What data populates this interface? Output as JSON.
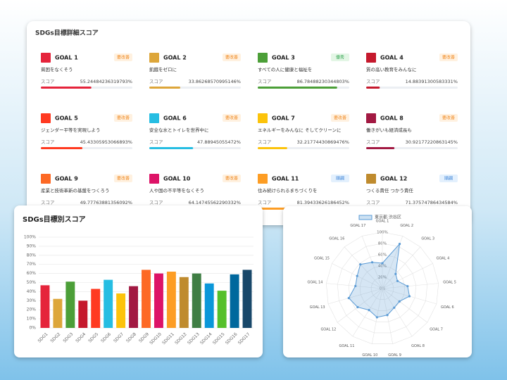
{
  "detail_panel": {
    "title": "SDGs目標詳細スコア",
    "score_caption": "スコア",
    "score_lim": [
      0,
      100
    ],
    "cards": [
      {
        "goal": "GOAL 1",
        "badge": "要改善",
        "description": "貧困をなくそう",
        "score": 55.24484236319793,
        "score_label": "55.24484236319793%",
        "color": "#e5243b"
      },
      {
        "goal": "GOAL 2",
        "badge": "要改善",
        "description": "飢餓をゼロに",
        "score": 33.86268570995146,
        "score_label": "33.86268570995146%",
        "color": "#dda63a"
      },
      {
        "goal": "GOAL 3",
        "badge": "優秀",
        "description": "すべての人に健康と福祉を",
        "score": 86.78488230344803,
        "score_label": "86.78488230344803%",
        "color": "#4c9f38"
      },
      {
        "goal": "GOAL 4",
        "badge": "要改善",
        "description": "質の高い教育をみんなに",
        "score": 14.88391300583331,
        "score_label": "14.88391300583331%",
        "color": "#c5192d"
      },
      {
        "goal": "GOAL 5",
        "badge": "要改善",
        "description": "ジェンダー平等を実現しよう",
        "score": 45.43305953066893,
        "score_label": "45.43305953066893%",
        "color": "#ff3a21"
      },
      {
        "goal": "GOAL 6",
        "badge": "要改善",
        "description": "安全な水とトイレを世界中に",
        "score": 47.88945055472,
        "score_label": "47.88945055472%",
        "color": "#26bde2"
      },
      {
        "goal": "GOAL 7",
        "badge": "要改善",
        "description": "エネルギーをみんなに そしてクリーンに",
        "score": 32.21774430869476,
        "score_label": "32.21774430869476%",
        "color": "#fcc30b"
      },
      {
        "goal": "GOAL 8",
        "badge": "要改善",
        "description": "働きがいも経済成長も",
        "score": 30.92177220863145,
        "score_label": "30.92177220863145%",
        "color": "#a21942"
      },
      {
        "goal": "GOAL 9",
        "badge": "要改善",
        "description": "産業と技術革新の基盤をつくろう",
        "score": 49.77763881356092,
        "score_label": "49.77763881356092%",
        "color": "#fd6925"
      },
      {
        "goal": "GOAL 10",
        "badge": "要改善",
        "description": "人や国の不平等をなくそう",
        "score": 64.14745562290332,
        "score_label": "64.14745562290332%",
        "color": "#dd1367"
      },
      {
        "goal": "GOAL 11",
        "badge": "順調",
        "description": "住み続けられるまちづくりを",
        "score": 81.39433626186452,
        "score_label": "81.39433626186452%",
        "color": "#fd9d24"
      },
      {
        "goal": "GOAL 12",
        "badge": "順調",
        "description": "つくる責任 つかう責任",
        "score": 71.37574786434584,
        "score_label": "71.37574786434584%",
        "color": "#bf8b2e"
      }
    ]
  },
  "chart_data": [
    {
      "type": "bar",
      "title": "SDGs目標別スコア",
      "categories": [
        "SDG1",
        "SDG2",
        "SDG3",
        "SDG4",
        "SDG5",
        "SDG6",
        "SDG7",
        "SDG8",
        "SDG9",
        "SDG10",
        "SDG11",
        "SDG12",
        "SDG13",
        "SDG14",
        "SDG15",
        "SDG16",
        "SDG17"
      ],
      "values": [
        47,
        32,
        51,
        30,
        43,
        53,
        38,
        46,
        64,
        60,
        62,
        56,
        60,
        49,
        41,
        59,
        64
      ],
      "colors": [
        "#e5243b",
        "#dda63a",
        "#4c9f38",
        "#c5192d",
        "#ff3a21",
        "#26bde2",
        "#fcc30b",
        "#a21942",
        "#fd6925",
        "#dd1367",
        "#fd9d24",
        "#bf8b2e",
        "#3f7e44",
        "#0a97d9",
        "#56c02b",
        "#00689d",
        "#19486a"
      ],
      "ylim": [
        0,
        100
      ],
      "yticks": [
        {
          "value": 0,
          "label": "0%"
        },
        {
          "value": 10,
          "label": "10%"
        },
        {
          "value": 20,
          "label": "20%"
        },
        {
          "value": 30,
          "label": "30%"
        },
        {
          "value": 40,
          "label": "40%"
        },
        {
          "value": 50,
          "label": "50%"
        },
        {
          "value": 60,
          "label": "60%"
        },
        {
          "value": 70,
          "label": "70%"
        },
        {
          "value": 80,
          "label": "80%"
        },
        {
          "value": 90,
          "label": "90%"
        },
        {
          "value": 100,
          "label": "100%"
        }
      ],
      "grid": true
    },
    {
      "type": "radar",
      "categories": [
        "GOAL 1",
        "GOAL 2",
        "GOAL 3",
        "GOAL 4",
        "GOAL 5",
        "GOAL 6",
        "GOAL 7",
        "GOAL 8",
        "GOAL 9",
        "GOAL 10",
        "GOAL 11",
        "GOAL 12",
        "GOAL 13",
        "GOAL 14",
        "GOAL 15",
        "GOAL 16",
        "GOAL 17"
      ],
      "series": [
        {
          "name": "東京都 渋谷区",
          "color": "#5b9bd5",
          "values": [
            45,
            85,
            35,
            30,
            45,
            50,
            38,
            40,
            48,
            52,
            45,
            55,
            62,
            48,
            50,
            58,
            50
          ]
        }
      ],
      "ylim": [
        0,
        100
      ],
      "yticks": [
        {
          "value": 0,
          "label": "0%"
        },
        {
          "value": 20,
          "label": "20%"
        },
        {
          "value": 40,
          "label": "40%"
        },
        {
          "value": 60,
          "label": "60%"
        },
        {
          "value": 80,
          "label": "80%"
        },
        {
          "value": 100,
          "label": "100%"
        }
      ],
      "legend": "top"
    }
  ]
}
